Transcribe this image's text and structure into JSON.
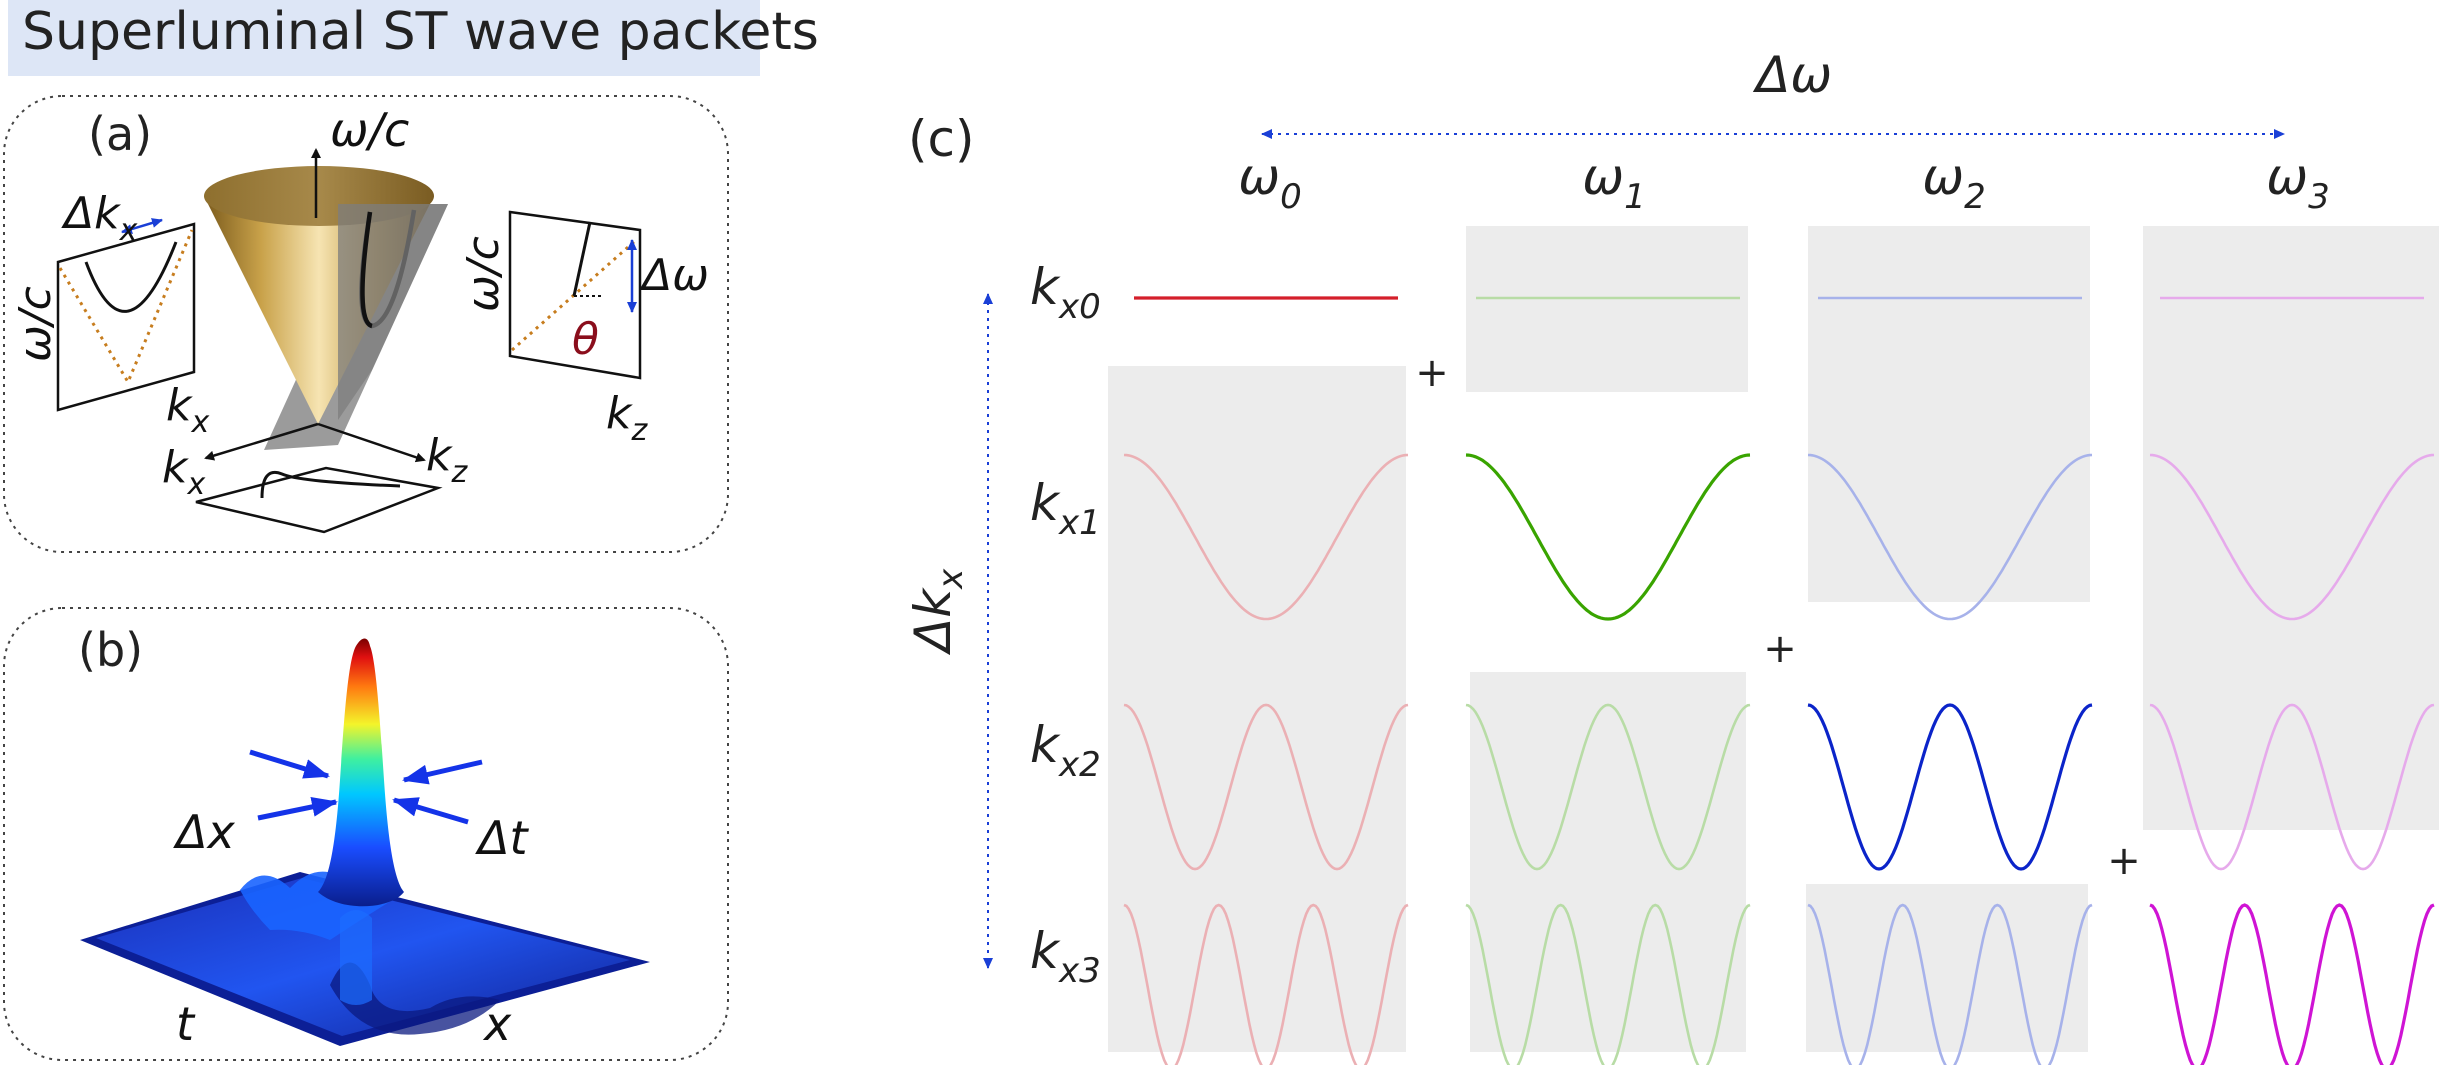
{
  "title": "Superluminal ST wave packets",
  "panel_a": {
    "label": "(a)",
    "cone_axis": "ω/c",
    "left_inset": {
      "top": "Δk",
      "top_sub": "x",
      "side": "ω/c",
      "bottom": "k",
      "bottom_sub": "x"
    },
    "right_inset": {
      "side": "ω/c",
      "right": "Δω",
      "angle": "θ",
      "bottom": "k",
      "bottom_sub": "z"
    },
    "base_axes": {
      "left": "k",
      "left_sub": "x",
      "right": "k",
      "right_sub": "z"
    }
  },
  "panel_b": {
    "label": "(b)",
    "width_x": "Δx",
    "width_t": "Δt",
    "axis_t": "t",
    "axis_x": "x"
  },
  "panel_c": {
    "label": "(c)",
    "freq_span": "Δω",
    "k_span": "Δk",
    "k_span_sub": "x",
    "columns": [
      {
        "sym": "ω",
        "sub": "0",
        "color": "#d41f2a",
        "faded": "#ebb0b4"
      },
      {
        "sym": "ω",
        "sub": "1",
        "color": "#39a400",
        "faded": "#b8dca6"
      },
      {
        "sym": "ω",
        "sub": "2",
        "color": "#0b24c9",
        "faded": "#a7b2ea"
      },
      {
        "sym": "ω",
        "sub": "3",
        "color": "#cf14d4",
        "faded": "#e6aaeb"
      }
    ],
    "rows": [
      {
        "sym": "k",
        "sub": "x0",
        "cycles": 0
      },
      {
        "sym": "k",
        "sub": "x1",
        "cycles": 1
      },
      {
        "sym": "k",
        "sub": "x2",
        "cycles": 2
      },
      {
        "sym": "k",
        "sub": "x3",
        "cycles": 3
      }
    ],
    "plus_sign": "+"
  }
}
